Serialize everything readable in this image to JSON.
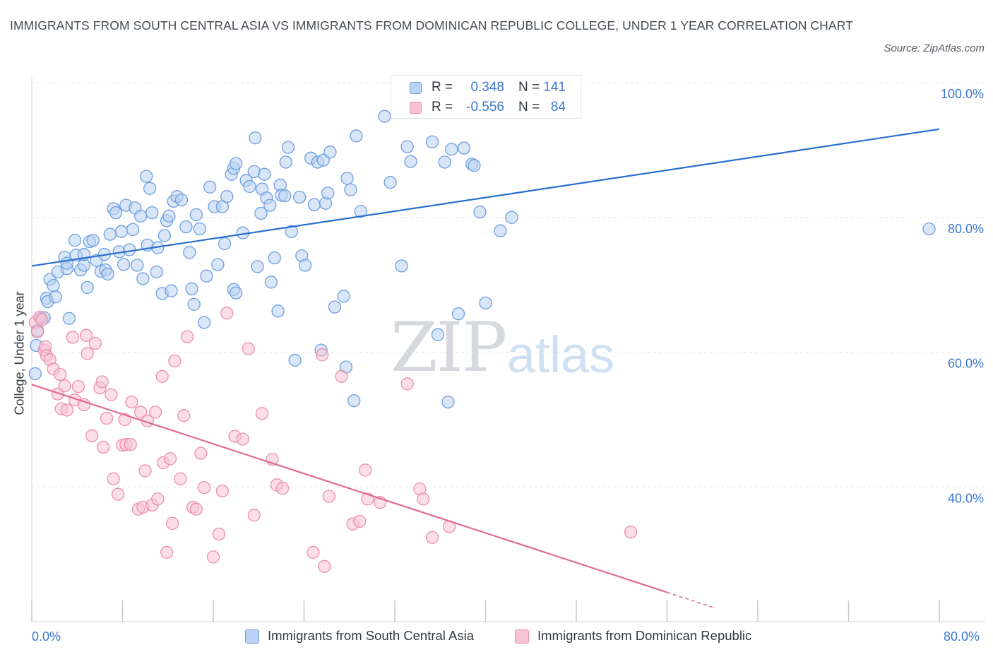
{
  "header": {
    "title": "IMMIGRANTS FROM SOUTH CENTRAL ASIA VS IMMIGRANTS FROM DOMINICAN REPUBLIC COLLEGE, UNDER 1 YEAR CORRELATION CHART",
    "source": "Source: ZipAtlas.com"
  },
  "watermark": {
    "zip": "ZIP",
    "atlas": "atlas"
  },
  "legend": {
    "r_label": "R =",
    "n_label": "N =",
    "rows": [
      {
        "r": "0.348",
        "n": "141"
      },
      {
        "r": "-0.556",
        "n": "84"
      }
    ]
  },
  "bottom_legend": [
    {
      "label": "Immigrants from South Central Asia"
    },
    {
      "label": "Immigrants from Dominican Republic"
    }
  ],
  "colors": {
    "blue_fill": "#b9d2f3",
    "blue_stroke": "#6d9fe0",
    "blue_line": "#2a6fcf",
    "pink_fill": "#f7c3d4",
    "pink_stroke": "#ec8fad",
    "pink_line": "#e06996",
    "axis_text": "#3a78d1",
    "grid": "#e4e7eb"
  },
  "chart_data": {
    "type": "scatter",
    "title": "IMMIGRANTS FROM SOUTH CENTRAL ASIA VS IMMIGRANTS FROM DOMINICAN REPUBLIC COLLEGE, UNDER 1 YEAR CORRELATION CHART",
    "xlabel": "",
    "ylabel": "College, Under 1 year",
    "xlim": [
      0,
      80
    ],
    "ylim": [
      20,
      100
    ],
    "x_tick_labels": [
      "0.0%",
      "80.0%"
    ],
    "y_tick_labels": [
      "40.0%",
      "60.0%",
      "80.0%",
      "100.0%"
    ],
    "y_ticks": [
      40,
      60,
      80,
      100
    ],
    "grid": true,
    "legend_position": "top-center",
    "series": [
      {
        "name": "Immigrants from South Central Asia",
        "R": 0.348,
        "N": 141,
        "trend": {
          "x": [
            0,
            80
          ],
          "y": [
            72.8,
            93.1
          ]
        },
        "points": [
          [
            0.3,
            56.8
          ],
          [
            0.4,
            61.0
          ],
          [
            0.5,
            63.2
          ],
          [
            0.8,
            65.0
          ],
          [
            1.1,
            65.1
          ],
          [
            1.3,
            68.0
          ],
          [
            1.4,
            67.5
          ],
          [
            1.6,
            70.8
          ],
          [
            1.9,
            69.9
          ],
          [
            2.1,
            68.2
          ],
          [
            2.3,
            71.9
          ],
          [
            2.9,
            74.1
          ],
          [
            3.1,
            72.4
          ],
          [
            3.1,
            73.2
          ],
          [
            3.3,
            65.0
          ],
          [
            3.8,
            76.6
          ],
          [
            3.9,
            74.4
          ],
          [
            4.3,
            72.2
          ],
          [
            4.6,
            72.9
          ],
          [
            4.6,
            74.5
          ],
          [
            4.9,
            69.6
          ],
          [
            5.1,
            76.4
          ],
          [
            5.4,
            76.6
          ],
          [
            5.7,
            73.6
          ],
          [
            6.1,
            72.0
          ],
          [
            6.4,
            74.5
          ],
          [
            6.5,
            72.2
          ],
          [
            6.7,
            71.6
          ],
          [
            6.9,
            77.5
          ],
          [
            7.2,
            81.3
          ],
          [
            7.4,
            80.7
          ],
          [
            7.7,
            74.9
          ],
          [
            7.9,
            77.9
          ],
          [
            8.1,
            73.0
          ],
          [
            8.3,
            81.8
          ],
          [
            8.6,
            75.2
          ],
          [
            8.9,
            78.2
          ],
          [
            9.1,
            81.4
          ],
          [
            9.3,
            72.9
          ],
          [
            9.6,
            80.2
          ],
          [
            9.8,
            70.9
          ],
          [
            10.1,
            86.1
          ],
          [
            10.2,
            75.9
          ],
          [
            10.4,
            84.3
          ],
          [
            10.6,
            80.7
          ],
          [
            11.0,
            71.9
          ],
          [
            11.1,
            75.5
          ],
          [
            11.5,
            68.7
          ],
          [
            11.7,
            77.3
          ],
          [
            11.9,
            79.5
          ],
          [
            12.1,
            80.2
          ],
          [
            12.3,
            69.1
          ],
          [
            12.5,
            82.4
          ],
          [
            12.8,
            83.1
          ],
          [
            13.2,
            82.6
          ],
          [
            13.6,
            78.6
          ],
          [
            13.9,
            74.8
          ],
          [
            14.1,
            69.4
          ],
          [
            14.3,
            67.1
          ],
          [
            14.5,
            80.4
          ],
          [
            14.8,
            78.3
          ],
          [
            15.2,
            64.4
          ],
          [
            15.4,
            71.3
          ],
          [
            15.7,
            84.5
          ],
          [
            16.1,
            81.6
          ],
          [
            16.4,
            73.0
          ],
          [
            16.8,
            81.6
          ],
          [
            17.0,
            76.1
          ],
          [
            17.2,
            83.1
          ],
          [
            17.6,
            86.4
          ],
          [
            17.8,
            87.3
          ],
          [
            18.0,
            88.0
          ],
          [
            17.8,
            69.3
          ],
          [
            18.0,
            68.8
          ],
          [
            18.6,
            77.7
          ],
          [
            18.9,
            85.5
          ],
          [
            19.2,
            84.6
          ],
          [
            19.6,
            86.8
          ],
          [
            19.7,
            91.8
          ],
          [
            19.9,
            72.7
          ],
          [
            20.2,
            80.6
          ],
          [
            20.3,
            84.2
          ],
          [
            20.5,
            86.4
          ],
          [
            20.7,
            82.9
          ],
          [
            21.0,
            81.8
          ],
          [
            21.1,
            70.4
          ],
          [
            21.4,
            74.0
          ],
          [
            21.7,
            66.1
          ],
          [
            21.9,
            84.8
          ],
          [
            22.0,
            83.3
          ],
          [
            22.3,
            83.2
          ],
          [
            22.4,
            88.2
          ],
          [
            22.6,
            90.4
          ],
          [
            22.9,
            77.9
          ],
          [
            23.2,
            58.8
          ],
          [
            23.6,
            83.0
          ],
          [
            23.8,
            74.3
          ],
          [
            24.1,
            72.9
          ],
          [
            24.6,
            88.8
          ],
          [
            24.9,
            81.9
          ],
          [
            25.2,
            88.2
          ],
          [
            25.5,
            60.3
          ],
          [
            25.7,
            88.5
          ],
          [
            25.9,
            82.1
          ],
          [
            26.1,
            83.6
          ],
          [
            26.3,
            89.7
          ],
          [
            26.7,
            66.7
          ],
          [
            27.5,
            68.3
          ],
          [
            27.7,
            57.8
          ],
          [
            27.8,
            85.8
          ],
          [
            28.1,
            84.1
          ],
          [
            28.4,
            52.8
          ],
          [
            28.6,
            92.1
          ],
          [
            29.0,
            80.9
          ],
          [
            31.1,
            95.0
          ],
          [
            31.6,
            85.2
          ],
          [
            32.6,
            72.8
          ],
          [
            33.1,
            90.5
          ],
          [
            33.4,
            88.3
          ],
          [
            35.3,
            91.2
          ],
          [
            35.8,
            62.6
          ],
          [
            36.4,
            88.2
          ],
          [
            36.7,
            52.6
          ],
          [
            37.0,
            90.1
          ],
          [
            37.6,
            65.7
          ],
          [
            38.1,
            90.3
          ],
          [
            38.8,
            87.9
          ],
          [
            39.0,
            87.7
          ],
          [
            39.5,
            80.8
          ],
          [
            40.0,
            67.3
          ],
          [
            41.3,
            78.0
          ],
          [
            42.3,
            80.0
          ],
          [
            79.1,
            78.3
          ]
        ]
      },
      {
        "name": "Immigrants from Dominican Republic",
        "R": -0.556,
        "N": 84,
        "trend": {
          "x": [
            0,
            60.1
          ],
          "y": [
            55.2,
            22.1
          ]
        },
        "points": [
          [
            0.3,
            64.4
          ],
          [
            0.5,
            63.0
          ],
          [
            0.7,
            65.2
          ],
          [
            0.9,
            64.8
          ],
          [
            1.1,
            60.3
          ],
          [
            1.2,
            60.8
          ],
          [
            1.3,
            59.5
          ],
          [
            1.6,
            58.9
          ],
          [
            1.9,
            57.5
          ],
          [
            2.3,
            53.8
          ],
          [
            2.5,
            56.7
          ],
          [
            2.6,
            51.6
          ],
          [
            2.9,
            55.0
          ],
          [
            3.1,
            51.4
          ],
          [
            3.6,
            62.2
          ],
          [
            3.8,
            52.9
          ],
          [
            4.1,
            54.9
          ],
          [
            4.6,
            52.2
          ],
          [
            4.8,
            62.5
          ],
          [
            4.9,
            59.8
          ],
          [
            5.3,
            47.6
          ],
          [
            5.6,
            61.3
          ],
          [
            6.0,
            54.7
          ],
          [
            6.2,
            55.6
          ],
          [
            6.3,
            45.9
          ],
          [
            6.6,
            50.2
          ],
          [
            7.0,
            53.7
          ],
          [
            7.2,
            41.2
          ],
          [
            7.6,
            38.9
          ],
          [
            8.0,
            46.2
          ],
          [
            8.3,
            46.3
          ],
          [
            8.2,
            50.0
          ],
          [
            8.7,
            46.3
          ],
          [
            8.8,
            52.6
          ],
          [
            9.4,
            36.7
          ],
          [
            9.6,
            51.1
          ],
          [
            9.8,
            37.0
          ],
          [
            10.0,
            42.4
          ],
          [
            10.2,
            49.8
          ],
          [
            10.6,
            37.3
          ],
          [
            10.9,
            51.1
          ],
          [
            11.1,
            38.2
          ],
          [
            11.5,
            56.4
          ],
          [
            11.6,
            43.6
          ],
          [
            11.9,
            30.3
          ],
          [
            12.2,
            44.2
          ],
          [
            12.4,
            34.6
          ],
          [
            12.6,
            58.7
          ],
          [
            13.1,
            41.2
          ],
          [
            13.4,
            50.6
          ],
          [
            13.7,
            62.3
          ],
          [
            14.2,
            37.0
          ],
          [
            14.5,
            36.7
          ],
          [
            14.9,
            45.0
          ],
          [
            15.2,
            39.9
          ],
          [
            16.0,
            29.6
          ],
          [
            16.5,
            33.0
          ],
          [
            16.8,
            39.4
          ],
          [
            17.2,
            65.8
          ],
          [
            17.9,
            47.5
          ],
          [
            18.6,
            47.1
          ],
          [
            19.1,
            60.5
          ],
          [
            19.6,
            35.8
          ],
          [
            20.3,
            50.9
          ],
          [
            21.2,
            44.1
          ],
          [
            21.6,
            40.3
          ],
          [
            22.1,
            39.8
          ],
          [
            24.8,
            30.3
          ],
          [
            25.6,
            59.6
          ],
          [
            25.8,
            28.2
          ],
          [
            26.2,
            38.6
          ],
          [
            27.3,
            56.4
          ],
          [
            28.3,
            34.5
          ],
          [
            28.9,
            34.9
          ],
          [
            29.4,
            42.5
          ],
          [
            29.6,
            38.2
          ],
          [
            30.7,
            37.7
          ],
          [
            33.1,
            55.3
          ],
          [
            34.2,
            39.7
          ],
          [
            34.5,
            38.2
          ],
          [
            35.3,
            32.5
          ],
          [
            36.8,
            34.1
          ],
          [
            52.8,
            33.3
          ]
        ]
      }
    ]
  }
}
